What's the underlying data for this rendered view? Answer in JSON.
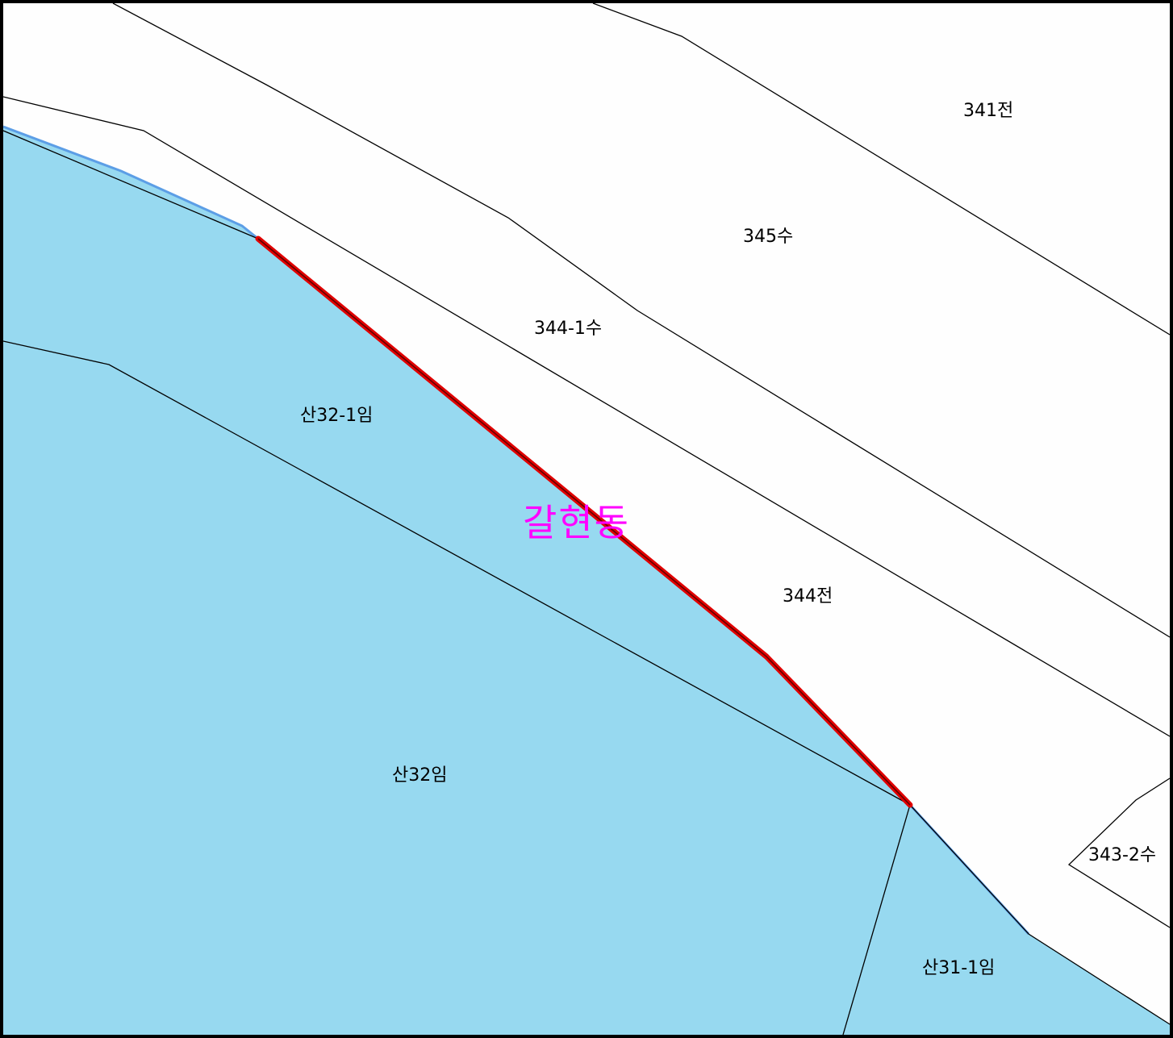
{
  "colors": {
    "forest_fill": "#97d9f0",
    "forest_edge": "#5c9ee6",
    "highlight_line": "#e00000",
    "district_label": "#ff00ff",
    "boundary": "#000000",
    "background": "#fefefe"
  },
  "district": {
    "name": "갈현동"
  },
  "parcels": [
    {
      "id": "p341",
      "label": "341전"
    },
    {
      "id": "p345",
      "label": "345수"
    },
    {
      "id": "p344_1",
      "label": "344-1수"
    },
    {
      "id": "p344",
      "label": "344전"
    },
    {
      "id": "p343_2",
      "label": "343-2수"
    },
    {
      "id": "psan32_1",
      "label": "산32-1임"
    },
    {
      "id": "psan32",
      "label": "산32임"
    },
    {
      "id": "psan31_1",
      "label": "산31-1임"
    }
  ]
}
